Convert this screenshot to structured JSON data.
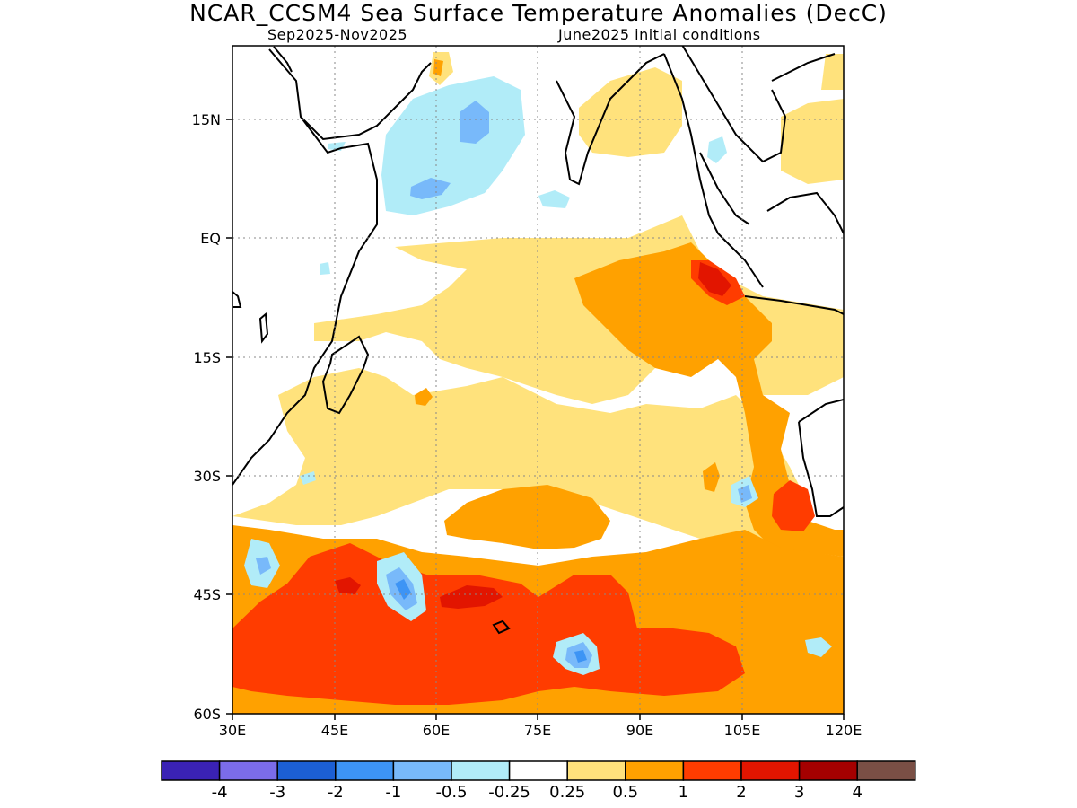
{
  "header": {
    "title": "NCAR_CCSM4 Sea Surface Temperature Anomalies (DecC)",
    "period": "Sep2025-Nov2025",
    "init": "June2025 initial conditions"
  },
  "map": {
    "lon_range": [
      30,
      120
    ],
    "lat_range": [
      -60,
      24
    ],
    "lon_ticks": [
      "30E",
      "45E",
      "60E",
      "75E",
      "90E",
      "105E",
      "120E"
    ],
    "lat_ticks": [
      "15N",
      "EQ",
      "15S",
      "30S",
      "45S",
      "60S"
    ],
    "grid": "dotted"
  },
  "colorbar": {
    "colors": [
      "#3a22b5",
      "#7b6cea",
      "#1c5fd4",
      "#3d94f5",
      "#78b9fa",
      "#b1ecf8",
      "#ffffff",
      "#ffe27c",
      "#ffa100",
      "#ff3c00",
      "#e21500",
      "#a50000",
      "#7a4f45"
    ],
    "labels": [
      "-4",
      "-3",
      "-2",
      "-1",
      "-0.5",
      "-0.25",
      "0.25",
      "0.5",
      "1",
      "2",
      "3",
      "4"
    ]
  }
}
